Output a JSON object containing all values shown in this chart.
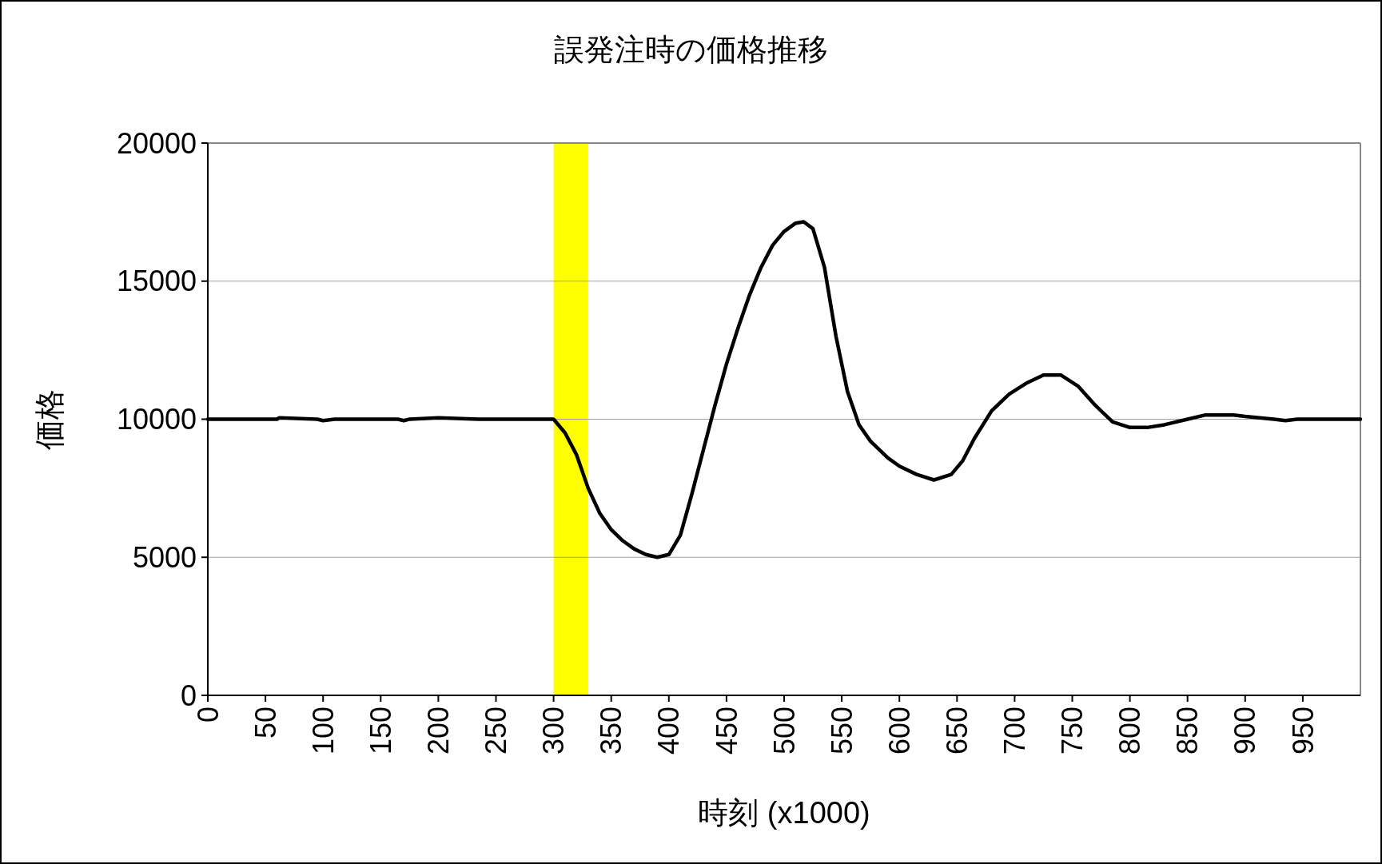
{
  "chart_data": {
    "type": "line",
    "title": "誤発注時の価格推移",
    "xlabel": "時刻 (x1000)",
    "ylabel": "価格",
    "x": [
      0,
      60,
      62,
      95,
      100,
      110,
      165,
      170,
      175,
      200,
      235,
      300,
      310,
      320,
      330,
      340,
      350,
      360,
      370,
      380,
      390,
      400,
      410,
      420,
      430,
      440,
      450,
      460,
      470,
      480,
      490,
      500,
      510,
      517,
      525,
      535,
      545,
      555,
      565,
      575,
      590,
      600,
      615,
      630,
      645,
      655,
      665,
      680,
      695,
      710,
      725,
      740,
      755,
      770,
      785,
      800,
      815,
      830,
      850,
      865,
      890,
      900,
      925,
      935,
      945,
      1000
    ],
    "series": [
      {
        "color": "#000000",
        "values": [
          10000,
          10000,
          10050,
          10000,
          9950,
          10000,
          10000,
          9950,
          10000,
          10050,
          10000,
          10000,
          9500,
          8700,
          7500,
          6600,
          6000,
          5600,
          5300,
          5100,
          5000,
          5100,
          5800,
          7300,
          8900,
          10500,
          12000,
          13300,
          14500,
          15500,
          16300,
          16800,
          17100,
          17150,
          16900,
          15500,
          13000,
          11000,
          9800,
          9200,
          8600,
          8300,
          8000,
          7800,
          8000,
          8500,
          9300,
          10300,
          10900,
          11300,
          11600,
          11600,
          11200,
          10500,
          9900,
          9700,
          9700,
          9800,
          10000,
          10150,
          10150,
          10100,
          10000,
          9950,
          10000,
          10000
        ]
      }
    ],
    "xlim": [
      0,
      1000
    ],
    "xticks": [
      0,
      50,
      100,
      150,
      200,
      250,
      300,
      350,
      400,
      450,
      500,
      550,
      600,
      650,
      700,
      750,
      800,
      850,
      900,
      950
    ],
    "ylim": [
      0,
      20000
    ],
    "yticks": [
      0,
      5000,
      10000,
      15000,
      20000
    ],
    "grid": "y",
    "marker": "none",
    "line_style": "solid",
    "bands": [
      {
        "axis": "x",
        "from": 300,
        "to": 330,
        "color": "#ffff00"
      }
    ]
  }
}
